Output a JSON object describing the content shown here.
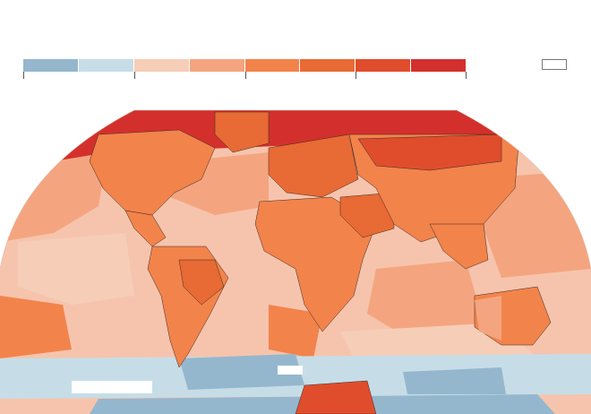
{
  "legend": {
    "colors": [
      "#94b7cd",
      "#c6dde7",
      "#f6cdb7",
      "#f4a57f",
      "#f2834b",
      "#e86a34",
      "#e04d2c",
      "#d3302d"
    ]
  },
  "no_data_color": "#ffffff",
  "map": {
    "ocean_base": "#f6c4ad",
    "regions": {
      "warm_ocean": "#f4a57f",
      "warmer_ocean": "#f2834b",
      "cool_ocean": "#f6cdb7",
      "cold_ocean": "#c6dde7",
      "colder_ocean": "#94b7cd",
      "land_warm": "#f2834b",
      "land_hot": "#e86a34",
      "land_hotter": "#e04d2c",
      "arctic": "#d3302d"
    },
    "border_color": "#3a2a22"
  }
}
